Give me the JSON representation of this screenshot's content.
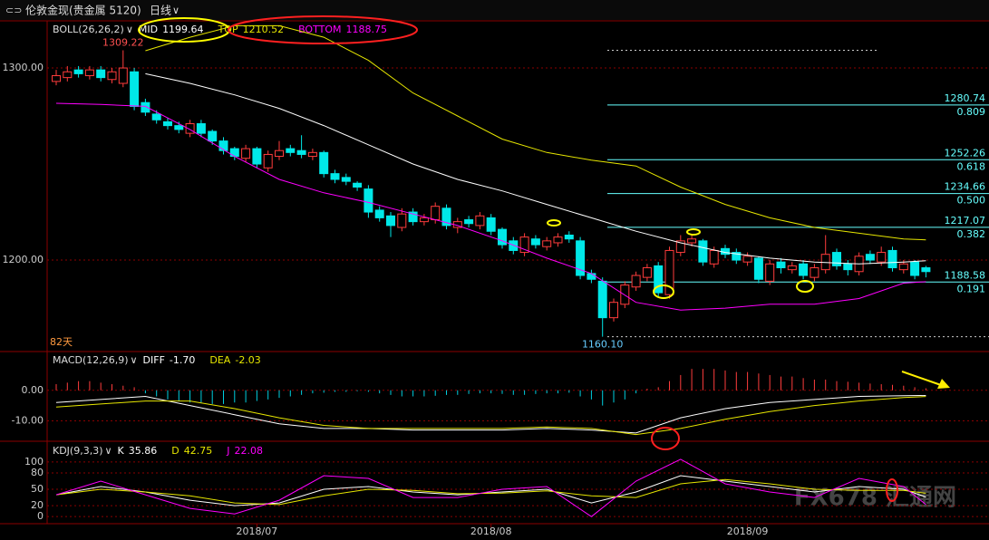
{
  "header": {
    "symbol": "伦敦金现(贵金属 5120)",
    "period": "日线",
    "watermark": "FX678 汇通网"
  },
  "chart_data": [
    {
      "type": "candlestick",
      "title": "BOLL(26,26,2)",
      "bars_label": "82天",
      "categories": [
        null,
        null,
        null,
        null,
        null,
        null,
        null,
        null,
        null,
        null,
        null,
        null,
        null,
        null,
        null,
        null,
        null,
        null,
        "2018/07",
        null,
        null,
        null,
        null,
        null,
        null,
        null,
        null,
        null,
        null,
        null,
        null,
        null,
        null,
        null,
        null,
        null,
        null,
        null,
        null,
        "2018/08",
        null,
        null,
        null,
        null,
        null,
        null,
        null,
        null,
        null,
        null,
        null,
        null,
        null,
        null,
        null,
        null,
        null,
        null,
        null,
        null,
        null,
        null,
        "2018/09",
        null,
        null,
        null,
        null,
        null,
        null,
        null,
        null,
        null,
        null,
        null,
        null,
        null,
        null,
        null,
        null
      ],
      "open": [
        1293,
        1295,
        1299,
        1296,
        1299,
        1294,
        1292,
        1298,
        1282,
        1276,
        1272,
        1270,
        1266,
        1271,
        1267,
        1262,
        1258,
        1253,
        1258,
        1248,
        1254,
        1258,
        1257,
        1254,
        1256,
        1245,
        1243,
        1240,
        1237,
        1226,
        1223,
        1217,
        1225,
        1220,
        1221,
        1227,
        1217,
        1221,
        1218,
        1222,
        1216,
        1210,
        1204,
        1211,
        1207,
        1209,
        1213,
        1210,
        1193,
        1189,
        1170,
        1177,
        1186,
        1191,
        1197,
        1182,
        1204,
        1209,
        1210,
        1198,
        1206,
        1204,
        1199,
        1201,
        1189,
        1199,
        1195,
        1198,
        1191,
        1195,
        1204,
        1198,
        1194,
        1203,
        1199,
        1205,
        1195,
        1199,
        1196
      ],
      "high": [
        1299,
        1301,
        1301,
        1301,
        1301,
        1300,
        1309.22,
        1300,
        1284,
        1278,
        1274,
        1272,
        1273,
        1273,
        1268,
        1264,
        1259,
        1260,
        1259,
        1257,
        1262,
        1260,
        1265,
        1258,
        1257,
        1247,
        1245,
        1241,
        1239,
        1228,
        1225,
        1227,
        1227,
        1224,
        1230,
        1229,
        1222,
        1223,
        1225,
        1224,
        1217,
        1212,
        1214,
        1213,
        1212,
        1214,
        1215,
        1212,
        1195,
        1191,
        1180,
        1189,
        1194,
        1198,
        1199,
        1207,
        1213,
        1213,
        1211,
        1207,
        1208,
        1206,
        1204,
        1202,
        1200,
        1201,
        1199,
        1200,
        1198,
        1213,
        1206,
        1200,
        1204,
        1205,
        1207,
        1207,
        1200,
        1200,
        1197
      ],
      "low": [
        1291,
        1293,
        1295,
        1294,
        1293,
        1292,
        1290,
        1278,
        1275,
        1271,
        1268,
        1266,
        1264,
        1264,
        1260,
        1255,
        1252,
        1251,
        1248,
        1246,
        1252,
        1254,
        1253,
        1252,
        1243,
        1240,
        1239,
        1236,
        1222,
        1220,
        1212,
        1215,
        1218,
        1218,
        1219,
        1216,
        1214,
        1217,
        1216,
        1213,
        1206,
        1203,
        1202,
        1206,
        1205,
        1207,
        1209,
        1190,
        1188,
        1160.1,
        1168,
        1175,
        1184,
        1189,
        1181,
        1180,
        1202,
        1207,
        1197,
        1196,
        1201,
        1198,
        1197,
        1188,
        1187,
        1193,
        1193,
        1190,
        1189,
        1193,
        1195,
        1192,
        1192,
        1198,
        1197,
        1194,
        1193,
        1190,
        1191
      ],
      "close": [
        1296,
        1298,
        1297,
        1299,
        1295,
        1298,
        1300,
        1280,
        1277,
        1273,
        1270,
        1268,
        1271,
        1266,
        1262,
        1257,
        1254,
        1258,
        1250,
        1255,
        1257,
        1256,
        1255,
        1256,
        1245,
        1242,
        1241,
        1238,
        1225,
        1222,
        1218,
        1224,
        1220,
        1222,
        1228,
        1218,
        1220,
        1219,
        1223,
        1215,
        1208,
        1205,
        1212,
        1208,
        1210,
        1212,
        1211,
        1192,
        1190,
        1170,
        1178,
        1187,
        1192,
        1196,
        1183,
        1205,
        1210,
        1211,
        1199,
        1205,
        1203,
        1200,
        1202,
        1190,
        1198,
        1196,
        1197,
        1192,
        1196,
        1203,
        1197,
        1195,
        1202,
        1200,
        1204,
        1196,
        1198,
        1192,
        1194
      ],
      "up_color": "#ff3c3c",
      "down_color": "#00e8e8",
      "series": [
        {
          "name": "MID",
          "color": "#ffffff",
          "last_label": "1199.64",
          "x": [
            8,
            12,
            16,
            20,
            24,
            28,
            32,
            36,
            40,
            44,
            48,
            52,
            56,
            60,
            64,
            68,
            72,
            76,
            78
          ],
          "values": [
            1297,
            1292,
            1286,
            1279,
            1270,
            1260,
            1250,
            1242,
            1236,
            1229,
            1222,
            1215,
            1209,
            1204,
            1201,
            1199,
            1198,
            1199,
            1199.64
          ]
        },
        {
          "name": "TOP",
          "color": "#e6e600",
          "last_label": "1210.52",
          "x": [
            8,
            12,
            16,
            20,
            24,
            28,
            32,
            36,
            40,
            44,
            48,
            52,
            56,
            60,
            64,
            68,
            72,
            76,
            78
          ],
          "values": [
            1309,
            1316,
            1322,
            1322,
            1316,
            1304,
            1287,
            1275,
            1263,
            1256,
            1252,
            1249,
            1238,
            1229,
            1222,
            1217,
            1214,
            1211,
            1210.52
          ]
        },
        {
          "name": "BOTTOM",
          "color": "#ff00ff",
          "last_label": "1188.75",
          "x": [
            0,
            4,
            8,
            12,
            16,
            20,
            24,
            28,
            32,
            36,
            40,
            44,
            48,
            52,
            56,
            60,
            64,
            68,
            72,
            76,
            78
          ],
          "values": [
            1281.6,
            1281,
            1280,
            1268,
            1254,
            1242,
            1235,
            1230,
            1224,
            1218,
            1210,
            1201,
            1193,
            1178,
            1174,
            1175,
            1177,
            1177,
            1180,
            1188,
            1188.75
          ]
        }
      ],
      "fib_levels": [
        {
          "value": 1280.74,
          "ratio": "0.809"
        },
        {
          "value": 1252.26,
          "ratio": "0.618"
        },
        {
          "value": 1234.66,
          "ratio": "0.500"
        },
        {
          "value": 1217.07,
          "ratio": "0.382"
        },
        {
          "value": 1188.58,
          "ratio": "0.191"
        }
      ],
      "extremes": [
        {
          "value": 1309.22,
          "label": "1309.22"
        },
        {
          "value": 1160.1,
          "label": "1160.10"
        }
      ],
      "ylim": [
        1153.8,
        1323.6
      ],
      "yticks": [
        {
          "value": 1200,
          "label": "1200.00"
        },
        {
          "value": 1300,
          "label": "1300.00"
        }
      ]
    },
    {
      "type": "macd",
      "title": "MACD(12,26,9)",
      "values": [
        2,
        2.5,
        3,
        3,
        2.5,
        2,
        1.5,
        1,
        -1,
        -2,
        -3,
        -3.5,
        -4,
        -4,
        -4.5,
        -4.5,
        -4,
        -4,
        -3.5,
        -3,
        -2.5,
        -2,
        -1.5,
        -1,
        -0.8,
        -0.5,
        -0.5,
        -0.3,
        -0.5,
        -1,
        -1.5,
        -2,
        -2,
        -2,
        -1.8,
        -1.5,
        -1.5,
        -1.2,
        -1,
        -1,
        -1.2,
        -1.5,
        -1.5,
        -1.2,
        -1,
        -1,
        -0.8,
        -2,
        -3,
        -5,
        -4,
        -3,
        -1,
        0.5,
        1,
        3,
        5,
        7,
        7,
        7,
        6.5,
        6,
        6,
        5.5,
        5,
        4.5,
        4.5,
        4,
        3.5,
        3.5,
        3,
        2.8,
        2.5,
        2.2,
        2,
        1.8,
        1.5,
        1,
        0.65
      ],
      "up_color": "#ff3c3c",
      "down_color": "#00d0e0",
      "series": [
        {
          "name": "DIFF",
          "color": "#ffffff",
          "last_label": "-1.70",
          "x": [
            0,
            4,
            8,
            12,
            16,
            20,
            24,
            28,
            32,
            36,
            40,
            44,
            48,
            52,
            56,
            60,
            64,
            68,
            72,
            76,
            78
          ],
          "values": [
            -4,
            -3,
            -2,
            -5,
            -8,
            -11,
            -12.5,
            -12.5,
            -13,
            -13,
            -13,
            -12.5,
            -13,
            -14,
            -9,
            -6,
            -4,
            -3,
            -2,
            -1.8,
            -1.7
          ]
        },
        {
          "name": "DEA",
          "color": "#e6e600",
          "last_label": "-2.03",
          "x": [
            0,
            4,
            8,
            12,
            16,
            20,
            24,
            28,
            32,
            36,
            40,
            44,
            48,
            52,
            56,
            60,
            64,
            68,
            72,
            76,
            78
          ],
          "values": [
            -5.5,
            -4.5,
            -3.5,
            -3.5,
            -6,
            -9,
            -11.5,
            -12.5,
            -12.5,
            -12.5,
            -12.5,
            -12,
            -12.5,
            -14.5,
            -12.5,
            -9.5,
            -7,
            -5,
            -3.5,
            -2.4,
            -2.03
          ]
        }
      ],
      "ylim": [
        -16.1,
        12.1
      ],
      "yticks": [
        {
          "value": 0,
          "label": "0.00"
        },
        {
          "value": -10,
          "label": "-10.00"
        }
      ]
    },
    {
      "type": "kdj",
      "title": "KDJ(9,3,3)",
      "series": [
        {
          "name": "K",
          "color": "#ffffff",
          "last_label": "35.86",
          "x": [
            0,
            4,
            8,
            12,
            16,
            20,
            24,
            28,
            32,
            36,
            40,
            44,
            48,
            52,
            56,
            60,
            64,
            68,
            72,
            76,
            78
          ],
          "values": [
            40,
            55,
            45,
            30,
            20,
            25,
            50,
            55,
            45,
            40,
            45,
            50,
            25,
            45,
            75,
            65,
            55,
            45,
            55,
            50,
            35.86
          ]
        },
        {
          "name": "D",
          "color": "#e6e600",
          "last_label": "42.75",
          "x": [
            0,
            4,
            8,
            12,
            16,
            20,
            24,
            28,
            32,
            36,
            40,
            44,
            48,
            52,
            56,
            60,
            64,
            68,
            72,
            76,
            78
          ],
          "values": [
            40,
            50,
            45,
            38,
            25,
            22,
            38,
            50,
            48,
            42,
            43,
            47,
            38,
            35,
            60,
            68,
            60,
            50,
            48,
            48,
            42.75
          ]
        },
        {
          "name": "J",
          "color": "#ff00ff",
          "last_label": "22.08",
          "x": [
            0,
            4,
            8,
            12,
            16,
            20,
            24,
            28,
            32,
            36,
            40,
            44,
            48,
            52,
            56,
            60,
            64,
            68,
            72,
            76,
            78
          ],
          "values": [
            40,
            65,
            40,
            15,
            5,
            30,
            75,
            70,
            35,
            35,
            50,
            55,
            0,
            65,
            105,
            60,
            45,
            35,
            70,
            55,
            22.08
          ]
        }
      ],
      "ylim": [
        -8,
        133
      ],
      "yticks": [
        0,
        20,
        50,
        80,
        100
      ]
    }
  ]
}
